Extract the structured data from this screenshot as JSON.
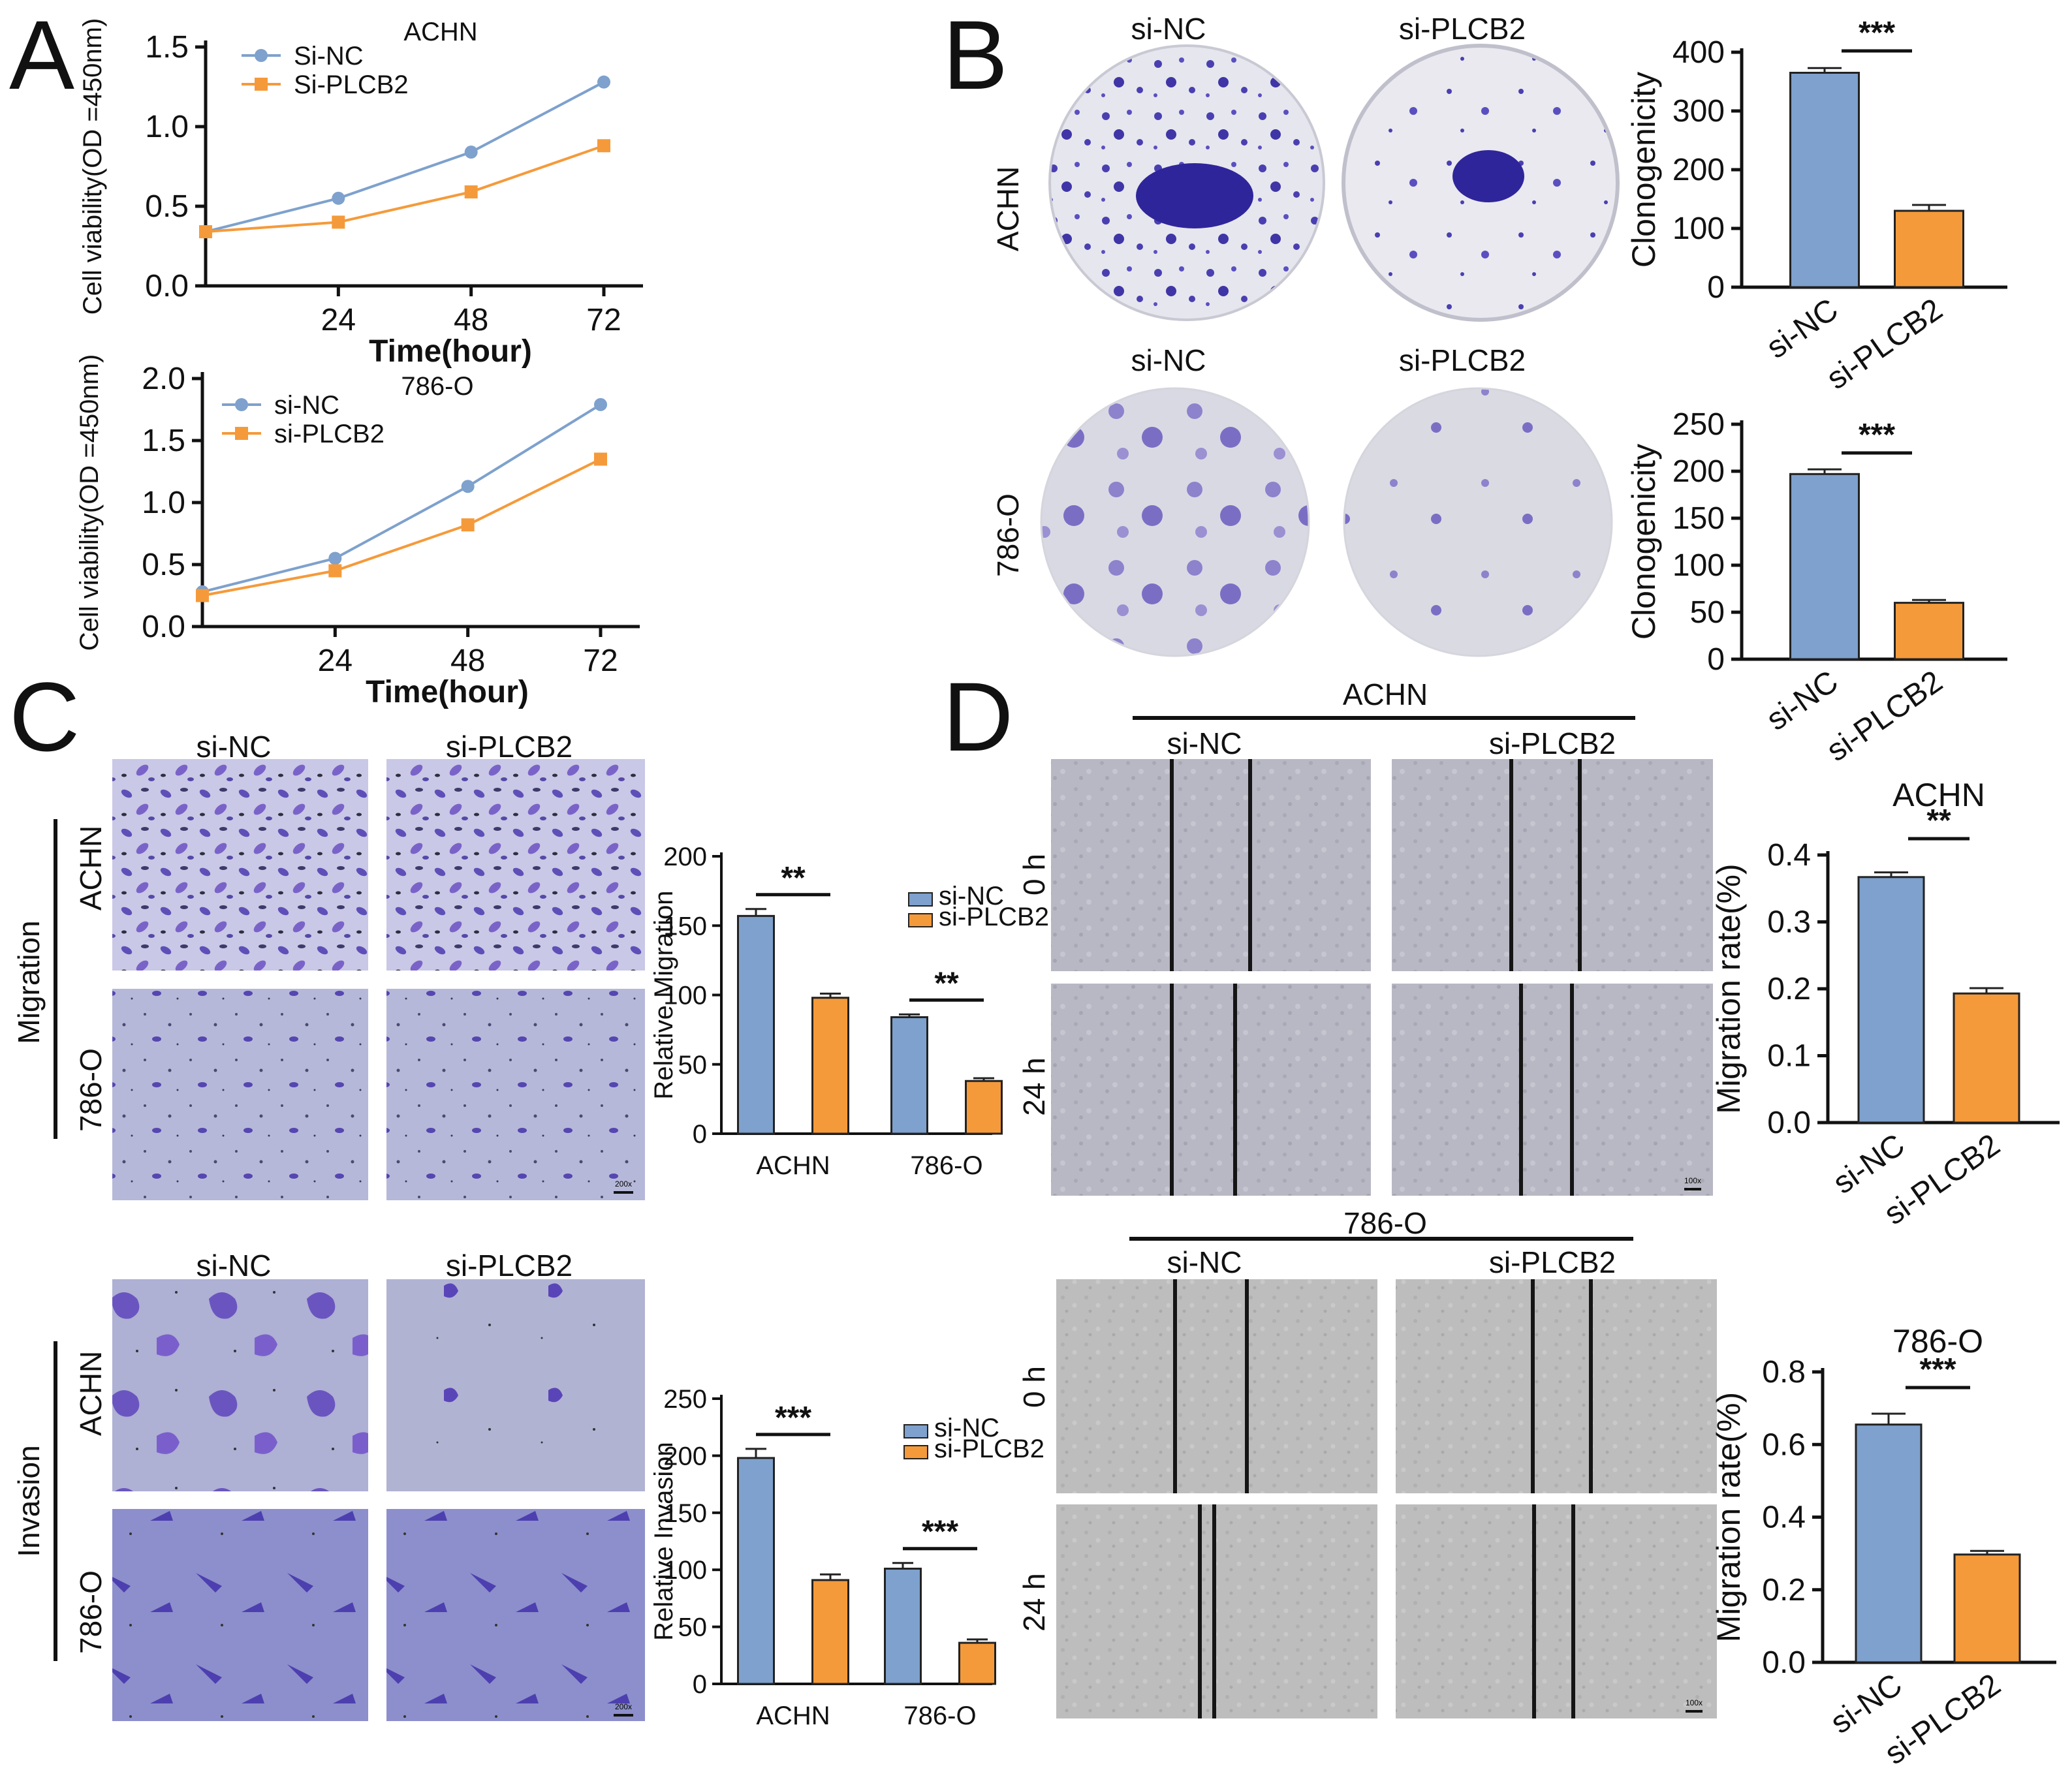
{
  "panels": {
    "a": "A",
    "b": "B",
    "c": "C",
    "d": "D"
  },
  "colors": {
    "si_nc": "#7ea1cd",
    "si_plcb2": "#f59a3a",
    "stain": "#4a3fb0"
  },
  "panel_b": {
    "col_labels": [
      "si-NC",
      "si-PLCB2"
    ],
    "row_labels": [
      "ACHN",
      "786-O"
    ]
  },
  "panel_c": {
    "col_labels": [
      "si-NC",
      "si-PLCB2"
    ],
    "row_labels": [
      "ACHN",
      "786-O"
    ],
    "groups": [
      "Migration",
      "Invasion"
    ],
    "scale_label": "200x"
  },
  "panel_d": {
    "sections": [
      "ACHN",
      "786-O"
    ],
    "col_labels": [
      "si-NC",
      "si-PLCB2"
    ],
    "time_labels": [
      "0 h",
      "24 h"
    ],
    "scale_label": "100x"
  },
  "chart_data": [
    {
      "id": "a-achn",
      "type": "line",
      "title": "ACHN",
      "x": [
        0,
        24,
        48,
        72
      ],
      "xticks": [
        "24",
        "48",
        "72"
      ],
      "xlabel": "Time(hour)",
      "ylabel": "Cell viability(OD =450nm)",
      "ylim": [
        0,
        1.5
      ],
      "yticks": [
        "0.0",
        "0.5",
        "1.0",
        "1.5"
      ],
      "series": [
        {
          "name": "Si-NC",
          "values": [
            0.34,
            0.55,
            0.84,
            1.28
          ]
        },
        {
          "name": "Si-PLCB2",
          "values": [
            0.34,
            0.4,
            0.59,
            0.88
          ]
        }
      ]
    },
    {
      "id": "a-786o",
      "type": "line",
      "title": "786-O",
      "x": [
        0,
        24,
        48,
        72
      ],
      "xticks": [
        "24",
        "48",
        "72"
      ],
      "xlabel": "Time(hour)",
      "ylabel": "Cell viability(OD =450nm)",
      "ylim": [
        0,
        2.0
      ],
      "yticks": [
        "0.0",
        "0.5",
        "1.0",
        "1.5",
        "2.0"
      ],
      "series": [
        {
          "name": "si-NC",
          "values": [
            0.28,
            0.55,
            1.13,
            1.79
          ]
        },
        {
          "name": "si-PLCB2",
          "values": [
            0.25,
            0.45,
            0.82,
            1.35
          ]
        }
      ]
    },
    {
      "id": "b-achn",
      "type": "bar",
      "categories": [
        "si-NC",
        "si-PLCB2"
      ],
      "values": [
        365,
        130
      ],
      "errors": [
        8,
        10
      ],
      "ylabel": "Clonogenicity",
      "ylim": [
        0,
        400
      ],
      "yticks": [
        "0",
        "100",
        "200",
        "300",
        "400"
      ],
      "sig": "***"
    },
    {
      "id": "b-786o",
      "type": "bar",
      "categories": [
        "si-NC",
        "si-PLCB2"
      ],
      "values": [
        197,
        60
      ],
      "errors": [
        5,
        3
      ],
      "ylabel": "Clonogenicity",
      "ylim": [
        0,
        250
      ],
      "yticks": [
        "0",
        "50",
        "100",
        "150",
        "200",
        "250"
      ],
      "sig": "***"
    },
    {
      "id": "c-mig",
      "type": "bar",
      "categories": [
        "ACHN",
        "786-O"
      ],
      "series": [
        {
          "name": "si-NC",
          "values": [
            157,
            84
          ],
          "errors": [
            5,
            2
          ]
        },
        {
          "name": "si-PLCB2",
          "values": [
            98,
            38
          ],
          "errors": [
            3,
            2
          ]
        }
      ],
      "ylabel": "Relative Migration",
      "ylim": [
        0,
        200
      ],
      "yticks": [
        "0",
        "50",
        "100",
        "150",
        "200"
      ],
      "sig": [
        "**",
        "**"
      ]
    },
    {
      "id": "c-inv",
      "type": "bar",
      "categories": [
        "ACHN",
        "786-O"
      ],
      "series": [
        {
          "name": "si-NC",
          "values": [
            198,
            101
          ],
          "errors": [
            8,
            5
          ]
        },
        {
          "name": "si-PLCB2",
          "values": [
            91,
            36
          ],
          "errors": [
            5,
            3
          ]
        }
      ],
      "ylabel": "Relative Invasion",
      "ylim": [
        0,
        250
      ],
      "yticks": [
        "0",
        "50",
        "100",
        "150",
        "200",
        "250"
      ],
      "sig": [
        "***",
        "***"
      ]
    },
    {
      "id": "d-achn",
      "type": "bar",
      "title": "ACHN",
      "categories": [
        "si-NC",
        "si-PLCB2"
      ],
      "values": [
        0.367,
        0.193
      ],
      "errors": [
        0.007,
        0.008
      ],
      "ylabel": "Migration rate(%)",
      "ylim": [
        0,
        0.4
      ],
      "yticks": [
        "0.0",
        "0.1",
        "0.2",
        "0.3",
        "0.4"
      ],
      "sig": "**"
    },
    {
      "id": "d-786o",
      "type": "bar",
      "title": "786-O",
      "categories": [
        "si-NC",
        "si-PLCB2"
      ],
      "values": [
        0.655,
        0.297
      ],
      "errors": [
        0.03,
        0.01
      ],
      "ylabel": "Migration rate(%)",
      "ylim": [
        0,
        0.8
      ],
      "yticks": [
        "0.0",
        "0.2",
        "0.4",
        "0.6",
        "0.8"
      ],
      "sig": "***"
    }
  ]
}
